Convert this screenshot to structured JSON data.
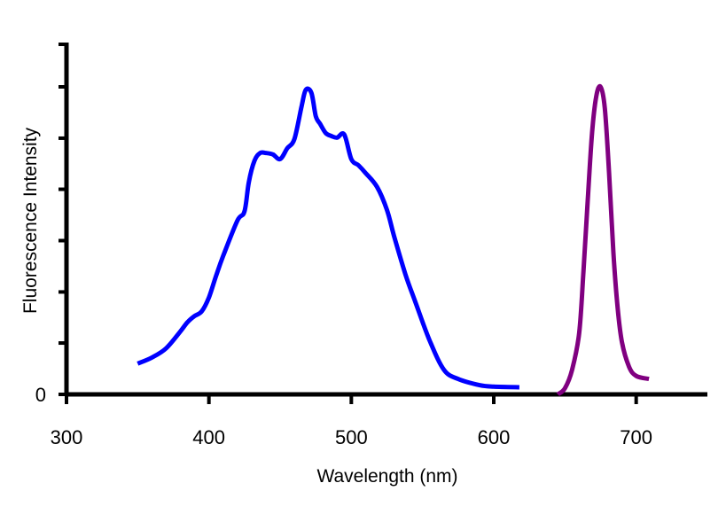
{
  "chart_data": {
    "type": "line",
    "title": "",
    "xlabel": "Wavelength (nm)",
    "ylabel": "Fluorescence Intensity",
    "xlim": [
      300,
      750
    ],
    "ylim": [
      0,
      1
    ],
    "x_ticks": [
      300,
      400,
      500,
      600,
      700
    ],
    "x_tick_labels": [
      "300",
      "400",
      "500",
      "600",
      "700"
    ],
    "y_ticks": [
      0,
      0.167,
      0.333,
      0.5,
      0.667,
      0.833,
      1.0
    ],
    "y_tick_labels": [
      "0"
    ],
    "grid": false,
    "legend": "none",
    "series": [
      {
        "color": "#0000ff",
        "x": [
          350,
          360,
          370,
          380,
          385,
          390,
          395,
          400,
          405,
          410,
          420,
          425,
          428,
          432,
          436,
          440,
          445,
          450,
          455,
          460,
          465,
          468,
          472,
          475,
          478,
          482,
          486,
          490,
          495,
          500,
          505,
          510,
          518,
          525,
          530,
          538,
          545,
          555,
          565,
          575,
          590,
          600,
          618
        ],
        "y": [
          0.1,
          0.12,
          0.15,
          0.205,
          0.235,
          0.255,
          0.27,
          0.315,
          0.385,
          0.45,
          0.565,
          0.595,
          0.69,
          0.76,
          0.785,
          0.785,
          0.78,
          0.765,
          0.8,
          0.83,
          0.935,
          0.99,
          0.98,
          0.905,
          0.88,
          0.85,
          0.84,
          0.835,
          0.845,
          0.765,
          0.745,
          0.72,
          0.675,
          0.6,
          0.515,
          0.39,
          0.3,
          0.175,
          0.08,
          0.05,
          0.03,
          0.025,
          0.023
        ]
      },
      {
        "color": "#800080",
        "x": [
          645,
          650,
          655,
          660,
          663,
          666,
          669,
          672,
          675,
          678,
          681,
          684,
          687,
          690,
          695,
          700,
          709
        ],
        "y": [
          0.0,
          0.02,
          0.08,
          0.2,
          0.4,
          0.63,
          0.85,
          0.97,
          1.0,
          0.93,
          0.72,
          0.46,
          0.28,
          0.17,
          0.09,
          0.06,
          0.05
        ]
      }
    ]
  }
}
